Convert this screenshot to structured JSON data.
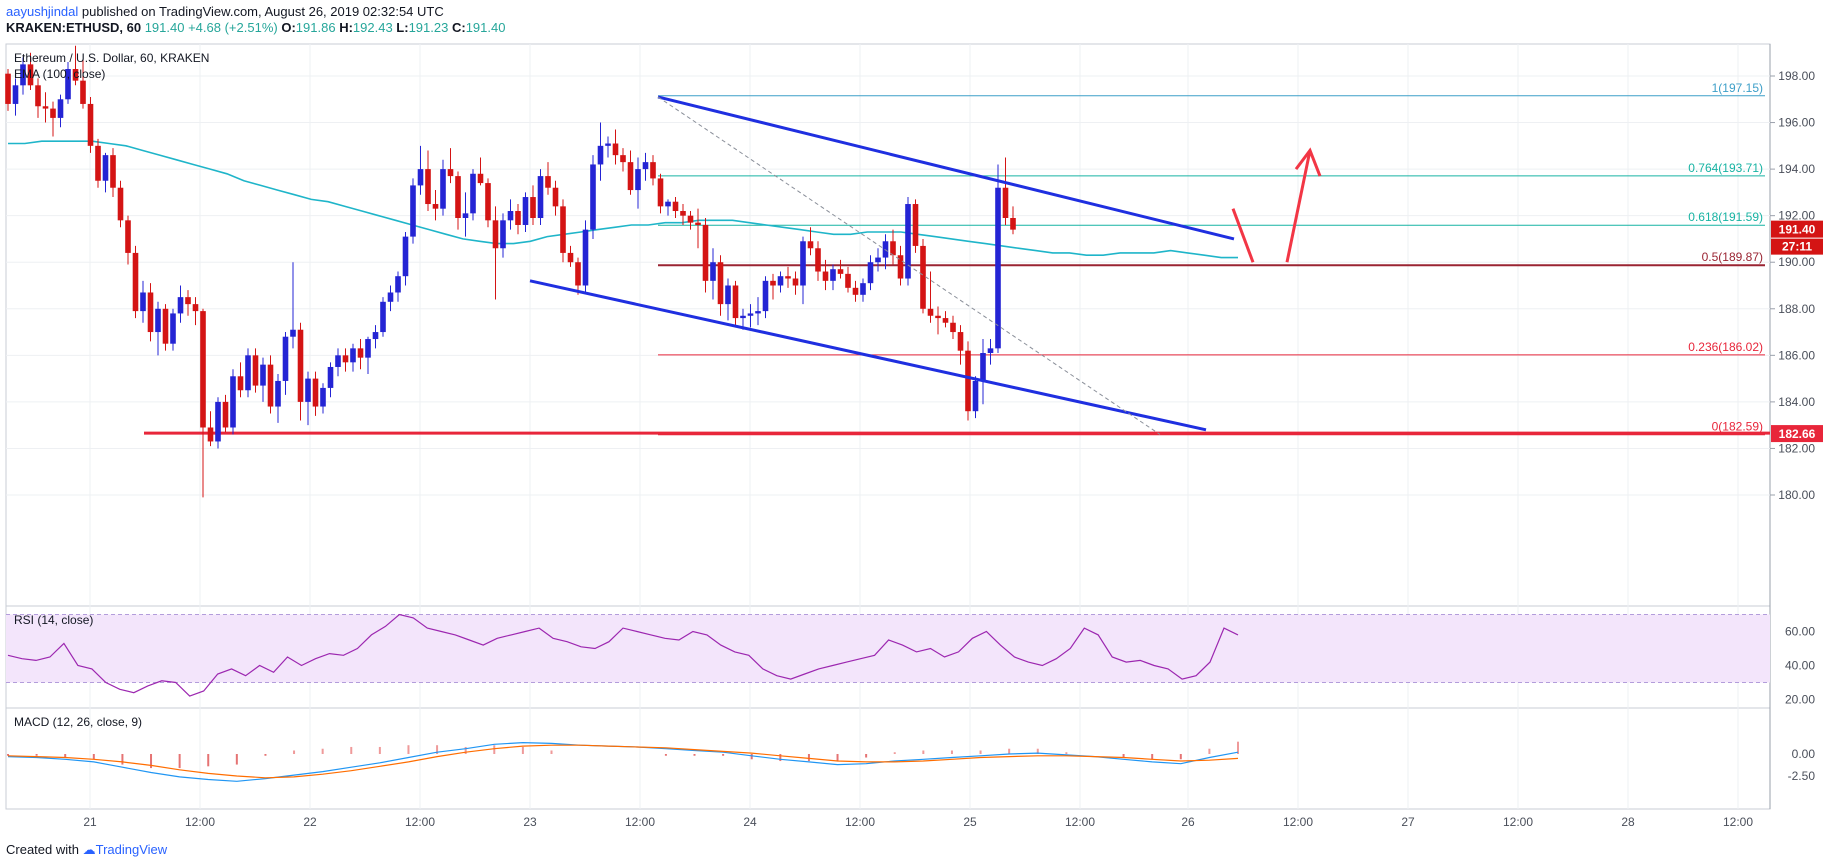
{
  "header": {
    "author": "aayushjindal",
    "published_text": "published on TradingView.com, August 26, 2019 02:32:54 UTC",
    "symbol": "KRAKEN:ETHUSD, 60",
    "price": "191.40",
    "change": "+4.68 (+2.51%)",
    "o_label": "O:",
    "o_value": "191.86",
    "h_label": "H:",
    "h_value": "192.43",
    "l_label": "L:",
    "l_value": "191.23",
    "c_label": "C:",
    "c_value": "191.40"
  },
  "chart_data": {
    "type": "candlestick",
    "title": "Ethereum / U.S. Dollar, 60, KRAKEN",
    "indicator_label": "EMA (100, close)",
    "ylim": [
      178.8,
      199.8
    ],
    "y_ticks": [
      "198.00",
      "196.00",
      "194.00",
      "192.00",
      "190.00",
      "188.00",
      "186.00",
      "184.00",
      "182.00",
      "180.00"
    ],
    "x_ticks": [
      "21",
      "12:00",
      "22",
      "12:00",
      "23",
      "12:00",
      "24",
      "12:00",
      "25",
      "12:00",
      "26",
      "12:00",
      "27",
      "12:00",
      "28",
      "12:00"
    ],
    "price_label": "191.40",
    "countdown": "27:11",
    "support_label": "182.66",
    "fib_levels": [
      {
        "ratio": "1",
        "value": "197.15",
        "price": 197.15
      },
      {
        "ratio": "0.764",
        "value": "193.71",
        "price": 193.71
      },
      {
        "ratio": "0.618",
        "value": "191.59",
        "price": 191.59
      },
      {
        "ratio": "0.5",
        "value": "189.87",
        "price": 189.87
      },
      {
        "ratio": "0.236",
        "value": "186.02",
        "price": 186.02
      },
      {
        "ratio": "0",
        "value": "182.59",
        "price": 182.59
      }
    ],
    "channel": {
      "upper": [
        [
          197.1,
          191.0
        ]
      ],
      "lower": [
        [
          189.2,
          182.8
        ]
      ]
    },
    "support_price": 182.66,
    "candles": [
      [
        198.1,
        198.3,
        196.5,
        196.8
      ],
      [
        196.8,
        197.9,
        196.3,
        197.6
      ],
      [
        197.6,
        198.8,
        197.2,
        198.5
      ],
      [
        198.5,
        199.0,
        197.4,
        197.6
      ],
      [
        197.6,
        197.9,
        196.2,
        196.7
      ],
      [
        196.7,
        197.3,
        196.0,
        196.6
      ],
      [
        196.6,
        196.9,
        195.4,
        196.2
      ],
      [
        196.2,
        197.2,
        195.8,
        197.0
      ],
      [
        197.0,
        198.6,
        196.8,
        198.3
      ],
      [
        198.3,
        199.3,
        197.6,
        197.8
      ],
      [
        197.8,
        198.7,
        196.6,
        196.8
      ],
      [
        196.8,
        197.1,
        194.7,
        195.0
      ],
      [
        195.0,
        195.3,
        193.2,
        193.5
      ],
      [
        193.5,
        194.7,
        193.0,
        194.6
      ],
      [
        194.6,
        194.9,
        192.8,
        193.2
      ],
      [
        193.2,
        193.5,
        191.5,
        191.8
      ],
      [
        191.8,
        192.0,
        189.9,
        190.4
      ],
      [
        190.4,
        190.7,
        187.6,
        187.9
      ],
      [
        187.9,
        189.2,
        187.4,
        188.7
      ],
      [
        188.7,
        189.1,
        186.6,
        187.0
      ],
      [
        187.0,
        188.3,
        186.0,
        188.0
      ],
      [
        188.0,
        188.2,
        186.2,
        186.5
      ],
      [
        186.5,
        188.0,
        186.2,
        187.8
      ],
      [
        187.8,
        189.0,
        187.4,
        188.5
      ],
      [
        188.5,
        188.8,
        187.7,
        188.2
      ],
      [
        188.2,
        188.5,
        187.3,
        187.9
      ],
      [
        187.9,
        188.0,
        179.9,
        182.9
      ],
      [
        182.9,
        183.6,
        182.1,
        182.3
      ],
      [
        182.3,
        184.2,
        182.0,
        184.0
      ],
      [
        184.0,
        184.3,
        182.7,
        182.9
      ],
      [
        182.9,
        185.4,
        182.6,
        185.1
      ],
      [
        185.1,
        185.7,
        184.2,
        184.5
      ],
      [
        184.5,
        186.3,
        184.2,
        186.0
      ],
      [
        186.0,
        186.3,
        184.4,
        184.7
      ],
      [
        184.7,
        185.9,
        184.0,
        185.6
      ],
      [
        185.6,
        186.0,
        183.5,
        183.8
      ],
      [
        183.8,
        185.2,
        183.1,
        184.9
      ],
      [
        184.9,
        187.0,
        184.3,
        186.8
      ],
      [
        186.8,
        190.0,
        186.3,
        187.1
      ],
      [
        187.1,
        187.4,
        183.2,
        184.0
      ],
      [
        184.0,
        185.3,
        183.0,
        185.0
      ],
      [
        185.0,
        185.3,
        183.4,
        183.8
      ],
      [
        183.8,
        184.8,
        183.5,
        184.6
      ],
      [
        184.6,
        185.7,
        184.2,
        185.5
      ],
      [
        185.5,
        186.3,
        185.1,
        186.0
      ],
      [
        186.0,
        186.3,
        185.3,
        185.7
      ],
      [
        185.7,
        186.5,
        185.3,
        186.3
      ],
      [
        186.3,
        186.7,
        185.4,
        185.9
      ],
      [
        185.9,
        186.8,
        185.2,
        186.7
      ],
      [
        186.7,
        187.3,
        186.3,
        187.0
      ],
      [
        187.0,
        188.5,
        186.8,
        188.3
      ],
      [
        188.3,
        189.0,
        187.9,
        188.7
      ],
      [
        188.7,
        189.6,
        188.3,
        189.4
      ],
      [
        189.4,
        191.3,
        189.0,
        191.1
      ],
      [
        191.1,
        193.6,
        190.8,
        193.3
      ],
      [
        193.3,
        195.0,
        192.9,
        194.0
      ],
      [
        194.0,
        194.8,
        192.2,
        192.5
      ],
      [
        192.5,
        193.1,
        191.8,
        192.3
      ],
      [
        192.3,
        194.4,
        192.0,
        194.0
      ],
      [
        194.0,
        194.9,
        193.4,
        193.7
      ],
      [
        193.7,
        193.9,
        191.4,
        191.9
      ],
      [
        191.9,
        193.0,
        191.1,
        192.1
      ],
      [
        192.1,
        194.0,
        191.8,
        193.8
      ],
      [
        193.8,
        194.5,
        193.3,
        193.4
      ],
      [
        193.4,
        193.6,
        191.5,
        191.8
      ],
      [
        191.8,
        192.4,
        188.4,
        190.6
      ],
      [
        190.6,
        192.1,
        190.2,
        191.8
      ],
      [
        191.8,
        192.7,
        191.4,
        192.2
      ],
      [
        192.2,
        192.5,
        191.2,
        191.6
      ],
      [
        191.6,
        193.0,
        191.3,
        192.8
      ],
      [
        192.8,
        193.3,
        191.6,
        191.9
      ],
      [
        191.9,
        194.0,
        191.6,
        193.7
      ],
      [
        193.7,
        194.3,
        192.9,
        193.2
      ],
      [
        193.2,
        193.5,
        192.0,
        192.4
      ],
      [
        192.4,
        192.7,
        190.0,
        190.4
      ],
      [
        190.4,
        190.7,
        189.8,
        190.0
      ],
      [
        190.0,
        190.2,
        188.6,
        189.0
      ],
      [
        189.0,
        191.8,
        188.7,
        191.4
      ],
      [
        191.4,
        194.6,
        191.0,
        194.2
      ],
      [
        194.2,
        196.0,
        193.5,
        195.0
      ],
      [
        195.0,
        195.4,
        194.5,
        195.1
      ],
      [
        195.1,
        195.7,
        194.2,
        194.6
      ],
      [
        194.6,
        194.9,
        193.9,
        194.3
      ],
      [
        194.3,
        194.8,
        192.9,
        193.1
      ],
      [
        193.1,
        194.5,
        192.3,
        194.0
      ],
      [
        194.0,
        194.7,
        193.5,
        194.3
      ],
      [
        194.3,
        194.6,
        193.3,
        193.6
      ],
      [
        193.6,
        193.8,
        192.1,
        192.4
      ],
      [
        192.4,
        192.7,
        192.0,
        192.6
      ],
      [
        192.6,
        192.8,
        191.9,
        192.2
      ],
      [
        192.2,
        192.5,
        191.6,
        192.0
      ],
      [
        192.0,
        192.2,
        191.4,
        191.7
      ],
      [
        191.7,
        192.3,
        190.6,
        191.6
      ],
      [
        191.6,
        191.9,
        188.7,
        189.2
      ],
      [
        189.2,
        190.6,
        188.4,
        190.0
      ],
      [
        190.0,
        190.3,
        187.7,
        188.2
      ],
      [
        188.2,
        189.3,
        187.5,
        189.0
      ],
      [
        189.0,
        189.2,
        187.2,
        187.6
      ],
      [
        187.6,
        188.0,
        187.1,
        187.7
      ],
      [
        187.7,
        188.2,
        187.2,
        187.8
      ],
      [
        187.8,
        188.5,
        187.3,
        187.9
      ],
      [
        187.9,
        189.4,
        187.6,
        189.2
      ],
      [
        189.2,
        189.5,
        188.4,
        189.0
      ],
      [
        189.0,
        189.6,
        188.7,
        189.4
      ],
      [
        189.4,
        189.8,
        188.9,
        189.3
      ],
      [
        189.3,
        189.6,
        188.6,
        189.0
      ],
      [
        189.0,
        191.1,
        188.2,
        190.9
      ],
      [
        190.9,
        191.5,
        190.3,
        190.6
      ],
      [
        190.6,
        190.9,
        189.2,
        189.6
      ],
      [
        189.6,
        190.1,
        188.8,
        189.2
      ],
      [
        189.2,
        189.9,
        188.8,
        189.7
      ],
      [
        189.7,
        190.1,
        189.3,
        189.5
      ],
      [
        189.5,
        189.8,
        188.7,
        188.9
      ],
      [
        188.9,
        189.2,
        188.3,
        188.6
      ],
      [
        188.6,
        189.3,
        188.3,
        189.1
      ],
      [
        189.1,
        190.3,
        188.8,
        190.0
      ],
      [
        190.0,
        190.6,
        189.6,
        190.2
      ],
      [
        190.2,
        191.2,
        189.7,
        190.9
      ],
      [
        190.9,
        191.4,
        189.9,
        190.3
      ],
      [
        190.3,
        190.7,
        189.0,
        189.3
      ],
      [
        189.3,
        192.8,
        189.0,
        192.5
      ],
      [
        192.5,
        192.7,
        190.4,
        190.7
      ],
      [
        190.7,
        191.0,
        187.8,
        188.0
      ],
      [
        188.0,
        189.6,
        187.4,
        187.7
      ],
      [
        187.7,
        188.1,
        186.9,
        187.6
      ],
      [
        187.6,
        187.9,
        187.2,
        187.4
      ],
      [
        187.4,
        187.7,
        186.7,
        187.0
      ],
      [
        187.0,
        187.3,
        185.6,
        186.2
      ],
      [
        186.2,
        186.6,
        183.2,
        183.6
      ],
      [
        183.6,
        185.1,
        183.3,
        184.9
      ],
      [
        184.9,
        186.7,
        183.9,
        186.1
      ],
      [
        186.1,
        186.7,
        185.6,
        186.3
      ],
      [
        186.3,
        194.2,
        186.1,
        193.2
      ],
      [
        193.2,
        194.5,
        191.6,
        191.9
      ],
      [
        191.9,
        192.4,
        191.2,
        191.4
      ]
    ],
    "ema": [
      195.1,
      195.1,
      195.2,
      195.2,
      195.2,
      195.2,
      195.1,
      195.0,
      194.8,
      194.6,
      194.4,
      194.2,
      194.0,
      193.8,
      193.5,
      193.3,
      193.1,
      192.9,
      192.7,
      192.6,
      192.4,
      192.2,
      192.0,
      191.8,
      191.6,
      191.4,
      191.2,
      191.0,
      190.9,
      190.8,
      190.8,
      190.9,
      191.1,
      191.2,
      191.3,
      191.4,
      191.5,
      191.6,
      191.6,
      191.7,
      191.7,
      191.8,
      191.8,
      191.8,
      191.7,
      191.6,
      191.5,
      191.4,
      191.3,
      191.2,
      191.2,
      191.3,
      191.3,
      191.3,
      191.2,
      191.1,
      191.0,
      190.9,
      190.8,
      190.7,
      190.6,
      190.5,
      190.4,
      190.4,
      190.3,
      190.3,
      190.4,
      190.4,
      190.4,
      190.5,
      190.4,
      190.3,
      190.2,
      190.2
    ],
    "rsi": {
      "label": "RSI (14, close)",
      "ticks": [
        "60.00",
        "40.00",
        "20.00"
      ],
      "band": [
        30,
        70
      ]
    },
    "macd": {
      "label": "MACD (12, 26, close, 9)",
      "ticks": [
        "0.00",
        "-2.50"
      ]
    }
  },
  "footer": {
    "created_with": "Created with",
    "brand": "TradingView"
  },
  "colors": {
    "up": "#2424d4",
    "down": "#d41414",
    "ema": "#1fb5c9",
    "channel": "#1f2fe0",
    "support": "#e8263a",
    "fib_top": "#3d9fc8",
    "fib_green": "#17b3a3",
    "fib_mid": "#9a2432",
    "fib_low": "#e8263a",
    "arrow": "#f23645",
    "rsi_line": "#9c27b0",
    "rsi_fill": "#f3e5fb",
    "macd_line": "#2196f3",
    "signal_line": "#ff6d00"
  }
}
